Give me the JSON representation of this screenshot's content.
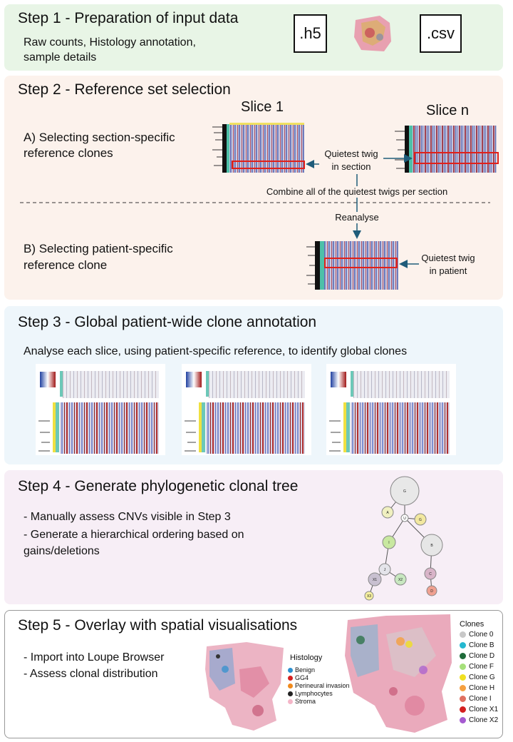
{
  "step1": {
    "title": "Step 1 - Preparation of input data",
    "desc_line1": "Raw counts, Histology annotation,",
    "desc_line2": "sample details",
    "file1": ".h5",
    "file2": ".csv"
  },
  "step2": {
    "title": "Step 2 - Reference set selection",
    "slice1": "Slice 1",
    "slicen": "Slice n",
    "a_line1": "A) Selecting section-specific",
    "a_line2": "reference clones",
    "quiet_section_1": "Quietest twig",
    "quiet_section_2": "in section",
    "combine": "Combine all of the quietest twigs per section",
    "reanalyse": "Reanalyse",
    "b_line1": "B) Selecting patient-specific",
    "b_line2": "reference clone",
    "quiet_patient_1": "Quietest twig",
    "quiet_patient_2": "in patient"
  },
  "step3": {
    "title": "Step 3 - Global patient-wide clone annotation",
    "desc": "Analyse each slice, using patient-specific reference, to identify global clones"
  },
  "step4": {
    "title": "Step 4 - Generate phylogenetic clonal tree",
    "bullet1": "- Manually assess CNVs visible in Step 3",
    "bullet2_line1": "- Generate a hierarchical ordering based on",
    "bullet2_line2": "gains/deletions",
    "nodes": [
      "G",
      "A",
      "U",
      "G",
      "I",
      "B",
      "J",
      "C",
      "X1",
      "X2",
      "D",
      "X3"
    ]
  },
  "step5": {
    "title": "Step 5 - Overlay with spatial visualisations",
    "bullet1": "- Import into Loupe Browser",
    "bullet2": "- Assess clonal distribution",
    "histology_title": "Histology",
    "histology": [
      {
        "label": "Benign",
        "color": "#2b8fcf"
      },
      {
        "label": "GG4",
        "color": "#d42020"
      },
      {
        "label": "Perineural invasion",
        "color": "#f08a1c"
      },
      {
        "label": "Lymphocytes",
        "color": "#222222"
      },
      {
        "label": "Stroma",
        "color": "#f4b6c8"
      }
    ],
    "clones_title": "Clones",
    "clones": [
      {
        "label": "Clone 0",
        "color": "#c8c8c8"
      },
      {
        "label": "Clone B",
        "color": "#25b8d0"
      },
      {
        "label": "Clone D",
        "color": "#1f6b3a"
      },
      {
        "label": "Clone F",
        "color": "#a6e07a"
      },
      {
        "label": "Clone G",
        "color": "#f0e020"
      },
      {
        "label": "Clone H",
        "color": "#f5a040"
      },
      {
        "label": "Clone I",
        "color": "#e07060"
      },
      {
        "label": "Clone X1",
        "color": "#d42020"
      },
      {
        "label": "Clone X2",
        "color": "#a55ad0"
      }
    ]
  }
}
